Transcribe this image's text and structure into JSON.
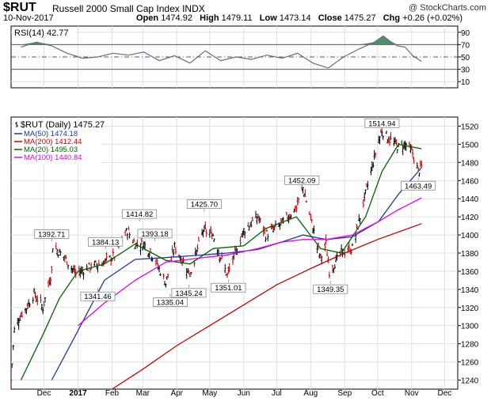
{
  "header": {
    "symbol": "$RUT",
    "name": "Russell 2000 Small Cap Index  INDX",
    "watermark": "@ StockCharts.com",
    "date": "10-Nov-2017",
    "open_label": "Open",
    "open": "1474.92",
    "high_label": "High",
    "high": "1479.11",
    "low_label": "Low",
    "low": "1473.14",
    "close_label": "Close",
    "close": "1475.27",
    "chg_label": "Chg",
    "chg": "+0.26 (+0.02%)"
  },
  "chart_data": [
    {
      "type": "line",
      "panel": "RSI",
      "title": "RSI(14) 42.77",
      "ylim": [
        0,
        100
      ],
      "yticks": [
        10,
        30,
        50,
        70,
        90
      ],
      "reference_lines": [
        30,
        50,
        70
      ],
      "overbought_fill_color": "#2e7d4f",
      "oversold_fill_color": "#3a5fcd",
      "x": [
        "2016-11-10",
        "2016-11-24",
        "2016-12-08",
        "2016-12-22",
        "2017-01-05",
        "2017-01-19",
        "2017-02-02",
        "2017-02-16",
        "2017-03-02",
        "2017-03-16",
        "2017-03-30",
        "2017-04-13",
        "2017-04-27",
        "2017-05-11",
        "2017-05-25",
        "2017-06-08",
        "2017-06-22",
        "2017-07-06",
        "2017-07-20",
        "2017-08-03",
        "2017-08-17",
        "2017-08-31",
        "2017-09-14",
        "2017-09-28",
        "2017-10-06",
        "2017-10-12",
        "2017-10-19",
        "2017-10-26",
        "2017-11-02",
        "2017-11-10"
      ],
      "values": [
        66,
        74,
        68,
        56,
        48,
        50,
        56,
        53,
        58,
        44,
        52,
        40,
        60,
        44,
        50,
        46,
        53,
        48,
        56,
        40,
        32,
        50,
        63,
        74,
        84,
        76,
        68,
        66,
        52,
        42.77
      ]
    },
    {
      "type": "candlestick",
      "panel": "price",
      "title": "$RUT (Daily) 1475.27",
      "ylim": [
        1230,
        1530
      ],
      "yticks": [
        1240,
        1260,
        1280,
        1300,
        1320,
        1340,
        1360,
        1380,
        1400,
        1420,
        1440,
        1460,
        1480,
        1500,
        1520
      ],
      "x_tick_labels": [
        "Dec",
        "2017",
        "Feb",
        "Mar",
        "Apr",
        "May",
        "Jun",
        "Jul",
        "Aug",
        "Sep",
        "Oct",
        "Nov",
        "Dec"
      ],
      "x_tick_dates": [
        "2016-12-01",
        "2017-01-01",
        "2017-02-01",
        "2017-03-01",
        "2017-04-01",
        "2017-05-01",
        "2017-06-01",
        "2017-07-01",
        "2017-08-01",
        "2017-09-01",
        "2017-10-01",
        "2017-11-01",
        "2017-12-01"
      ],
      "close_path": {
        "x": [
          "2016-11-01",
          "2016-11-04",
          "2016-11-09",
          "2016-11-15",
          "2016-11-22",
          "2016-11-30",
          "2016-12-08",
          "2016-12-09",
          "2016-12-20",
          "2016-12-30",
          "2017-01-12",
          "2017-01-25",
          "2017-02-03",
          "2017-02-15",
          "2017-02-22",
          "2017-03-02",
          "2017-03-10",
          "2017-03-22",
          "2017-03-30",
          "2017-04-13",
          "2017-04-25",
          "2017-05-04",
          "2017-05-17",
          "2017-06-01",
          "2017-06-14",
          "2017-06-21",
          "2017-07-05",
          "2017-07-19",
          "2017-07-25",
          "2017-08-10",
          "2017-08-15",
          "2017-08-18",
          "2017-08-29",
          "2017-09-08",
          "2017-09-20",
          "2017-10-02",
          "2017-10-05",
          "2017-10-12",
          "2017-10-20",
          "2017-10-27",
          "2017-11-02",
          "2017-11-07",
          "2017-11-10"
        ],
        "values": [
          1240,
          1295,
          1310,
          1320,
          1335,
          1320,
          1360,
          1388,
          1375,
          1357,
          1365,
          1370,
          1377,
          1405,
          1390,
          1390,
          1378,
          1347,
          1387,
          1357,
          1405,
          1400,
          1355,
          1405,
          1420,
          1400,
          1412,
          1430,
          1452,
          1374,
          1390,
          1360,
          1380,
          1385,
          1445,
          1505,
          1515,
          1505,
          1497,
          1500,
          1490,
          1470,
          1475.27
        ]
      },
      "series": [
        {
          "name": "MA(50) 1474.18",
          "color": "#1a3a9e",
          "x": [
            "2016-12-08",
            "2016-12-30",
            "2017-01-25",
            "2017-02-22",
            "2017-03-22",
            "2017-04-25",
            "2017-05-17",
            "2017-06-14",
            "2017-07-05",
            "2017-07-25",
            "2017-08-15",
            "2017-09-08",
            "2017-10-02",
            "2017-10-20",
            "2017-11-10"
          ],
          "values": [
            1240,
            1290,
            1350,
            1373,
            1375,
            1378,
            1380,
            1384,
            1392,
            1400,
            1395,
            1398,
            1415,
            1445,
            1474.18
          ]
        },
        {
          "name": "MA(200) 1412.44",
          "color": "#cc0000",
          "x": [
            "2017-02-01",
            "2017-03-01",
            "2017-04-01",
            "2017-05-01",
            "2017-06-01",
            "2017-07-01",
            "2017-08-01",
            "2017-09-01",
            "2017-10-01",
            "2017-11-10"
          ],
          "values": [
            1230,
            1252,
            1278,
            1300,
            1323,
            1345,
            1363,
            1380,
            1395,
            1412.44
          ]
        },
        {
          "name": "MA(20) 1495.03",
          "color": "#006400",
          "x": [
            "2016-11-10",
            "2016-11-30",
            "2016-12-15",
            "2017-01-01",
            "2017-01-25",
            "2017-02-22",
            "2017-03-22",
            "2017-04-13",
            "2017-05-04",
            "2017-06-01",
            "2017-06-21",
            "2017-07-19",
            "2017-08-10",
            "2017-08-29",
            "2017-09-20",
            "2017-10-05",
            "2017-10-20",
            "2017-11-10"
          ],
          "values": [
            1240,
            1290,
            1330,
            1360,
            1368,
            1390,
            1372,
            1368,
            1385,
            1388,
            1407,
            1420,
            1385,
            1380,
            1420,
            1470,
            1500,
            1495.03
          ]
        },
        {
          "name": "MA(100) 1440.84",
          "color": "#e600e6",
          "x": [
            "2017-01-01",
            "2017-01-25",
            "2017-02-22",
            "2017-03-22",
            "2017-04-25",
            "2017-05-17",
            "2017-06-14",
            "2017-07-05",
            "2017-07-25",
            "2017-08-15",
            "2017-09-08",
            "2017-10-02",
            "2017-10-20",
            "2017-11-10"
          ],
          "values": [
            1300,
            1325,
            1350,
            1370,
            1375,
            1378,
            1385,
            1392,
            1395,
            1395,
            1400,
            1415,
            1428,
            1440.84
          ]
        }
      ],
      "annotations": [
        {
          "text": "1392.71",
          "x": "2016-12-08",
          "y": 1392.71
        },
        {
          "text": "1384.13",
          "x": "2017-01-26",
          "y": 1384.13
        },
        {
          "text": "1341.46",
          "x": "2017-01-19",
          "y": 1341.46
        },
        {
          "text": "1414.82",
          "x": "2017-02-26",
          "y": 1414.82
        },
        {
          "text": "1393.18",
          "x": "2017-03-12",
          "y": 1393.18
        },
        {
          "text": "1335.04",
          "x": "2017-03-26",
          "y": 1335.04
        },
        {
          "text": "1345.24",
          "x": "2017-04-12",
          "y": 1345.24
        },
        {
          "text": "1425.70",
          "x": "2017-04-26",
          "y": 1425.7
        },
        {
          "text": "1351.01",
          "x": "2017-05-18",
          "y": 1351.01
        },
        {
          "text": "1452.09",
          "x": "2017-07-24",
          "y": 1452.09
        },
        {
          "text": "1349.35",
          "x": "2017-08-19",
          "y": 1349.35
        },
        {
          "text": "1514.94",
          "x": "2017-10-05",
          "y": 1514.94
        },
        {
          "text": "1463.49",
          "x": "2017-11-07",
          "y": 1463.49
        }
      ]
    }
  ]
}
